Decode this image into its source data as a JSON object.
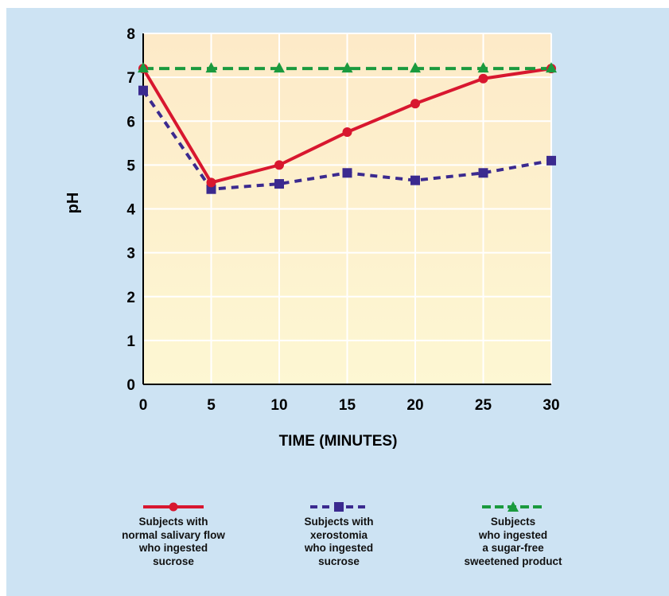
{
  "chart_data": {
    "type": "line",
    "xlabel": "TIME (MINUTES)",
    "ylabel": "pH",
    "xlim": [
      0,
      30
    ],
    "ylim": [
      0,
      8
    ],
    "x_ticks": [
      "0",
      "5",
      "10",
      "15",
      "20",
      "25",
      "30"
    ],
    "y_ticks": [
      "0",
      "1",
      "2",
      "3",
      "4",
      "5",
      "6",
      "7",
      "8"
    ],
    "grid": true,
    "legend_position": "bottom",
    "x": [
      0,
      5,
      10,
      15,
      20,
      25,
      30
    ],
    "series": [
      {
        "name": "Subjects with\nnormal salivary flow\nwho ingested\nsucrose",
        "values": [
          7.2,
          4.6,
          5.0,
          5.75,
          6.4,
          6.97,
          7.2
        ],
        "color": "#d8172f",
        "marker": "circle",
        "dash": "solid"
      },
      {
        "name": "Subjects with\nxerostomia\nwho ingested\nsucrose",
        "values": [
          6.7,
          4.45,
          4.57,
          4.82,
          4.65,
          4.82,
          5.1
        ],
        "color": "#3b2a8f",
        "marker": "square",
        "dash": "dashed"
      },
      {
        "name": "Subjects\nwho ingested\na sugar-free\nsweetened product",
        "values": [
          7.2,
          7.2,
          7.2,
          7.2,
          7.2,
          7.2,
          7.2
        ],
        "color": "#1a9a3e",
        "marker": "triangle",
        "dash": "dashed"
      }
    ]
  },
  "colors": {
    "panel_background": "#cde3f3",
    "plot_background_top": "#fdeac8",
    "plot_background_bottom": "#fdf7d3",
    "grid": "#ffffff",
    "axis": "#000000"
  }
}
